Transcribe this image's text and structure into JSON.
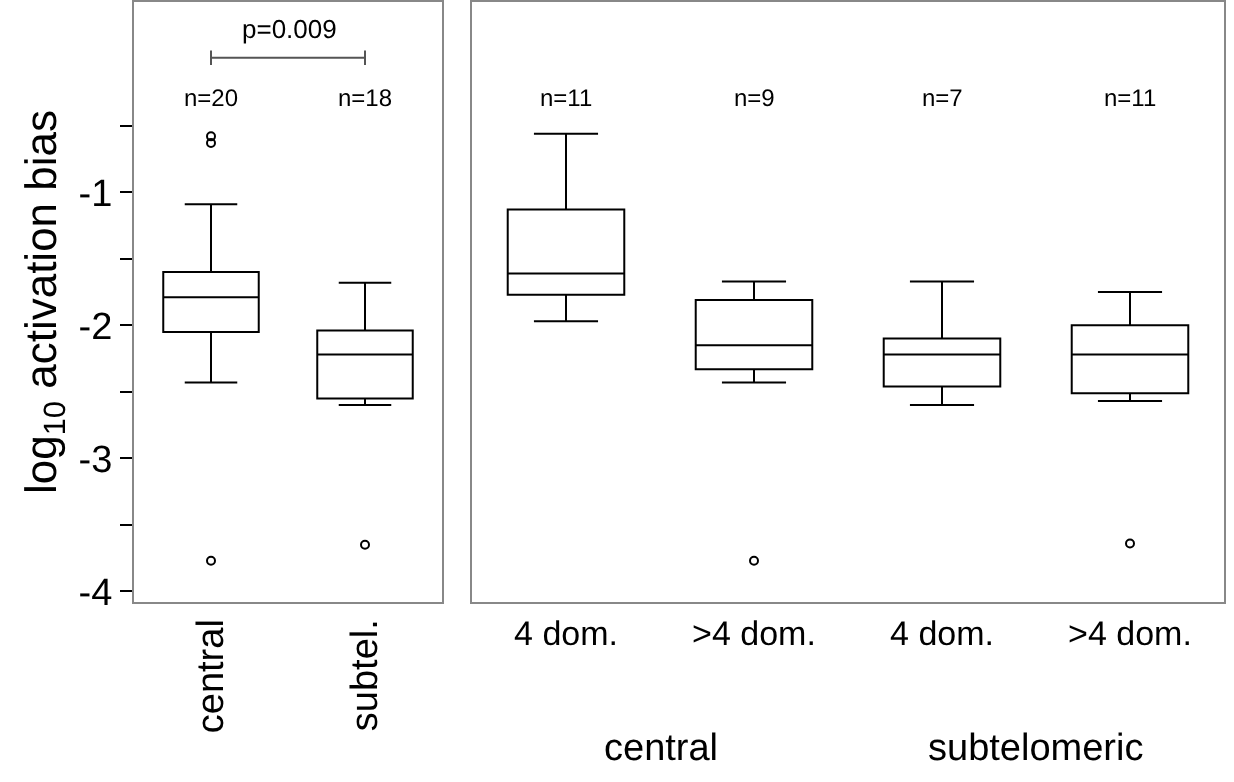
{
  "chart_data": [
    {
      "type": "box",
      "ylabel": "log$_{10}$ activation bias",
      "categories": [
        "central",
        "subtel."
      ],
      "boxes": [
        {
          "low": -2.43,
          "q1": -2.05,
          "median": -1.79,
          "q3": -1.6,
          "high": -1.09,
          "outliers": [
            -0.58,
            -0.63,
            -3.77
          ]
        },
        {
          "low": -2.6,
          "q1": -2.55,
          "median": -2.22,
          "q3": -2.04,
          "high": -1.68,
          "outliers": [
            -3.65
          ]
        }
      ],
      "ylim": [
        -4.08,
        0.43
      ],
      "yticks": [
        {
          "value": -0.5,
          "label": null
        },
        -1,
        {
          "value": -1.5,
          "label": null
        },
        -2,
        {
          "value": -2.5,
          "label": null
        },
        -3,
        {
          "value": -3.5,
          "label": null
        },
        -4
      ],
      "grid": false,
      "legend": false,
      "annotations": [
        "p=0.009",
        "n=20",
        "n=18"
      ]
    },
    {
      "type": "box",
      "categories": [
        "4 dom.",
        ">4 dom.",
        "4 dom.",
        ">4 dom."
      ],
      "boxes": [
        {
          "low": -1.97,
          "q1": -1.77,
          "median": -1.61,
          "q3": -1.13,
          "high": -0.56
        },
        {
          "low": -2.43,
          "q1": -2.33,
          "median": -2.15,
          "q3": -1.81,
          "high": -1.67,
          "outliers": [
            -3.77
          ]
        },
        {
          "low": -2.6,
          "q1": -2.46,
          "median": -2.22,
          "q3": -2.1,
          "high": -1.67
        },
        {
          "low": -2.57,
          "q1": -2.51,
          "median": -2.22,
          "q3": -2.0,
          "high": -1.75,
          "outliers": [
            -3.64
          ]
        }
      ],
      "ylim": [
        -4.08,
        0.43
      ],
      "tick_labels": "x",
      "grid": false,
      "legend": false,
      "annotations": [
        "n=11",
        "n=9",
        "n=7",
        "n=11",
        "central",
        "subtelomeric"
      ]
    }
  ]
}
